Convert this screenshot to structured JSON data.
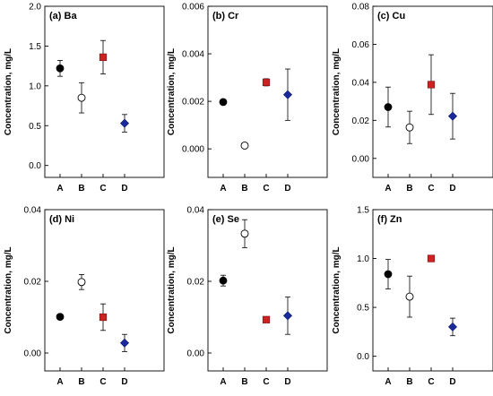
{
  "chart_data": [
    {
      "type": "scatter",
      "title": "(a) Ba",
      "ylabel": "Concentration, mg/L",
      "categories": [
        "A",
        "B",
        "C",
        "D"
      ],
      "ylim": [
        -0.15,
        2.0
      ],
      "yticks": [
        0.0,
        0.5,
        1.0,
        1.5,
        2.0
      ],
      "ytick_labels": [
        "0.0",
        "0.5",
        "1.0",
        "1.5",
        "2.0"
      ],
      "points": [
        {
          "category": "A",
          "value": 1.22,
          "err": 0.1,
          "marker": "circle-filled",
          "color": "#000000"
        },
        {
          "category": "B",
          "value": 0.85,
          "err": 0.19,
          "marker": "circle-open",
          "color": "#000000"
        },
        {
          "category": "C",
          "value": 1.36,
          "err": 0.21,
          "marker": "square",
          "color": "#cc2222"
        },
        {
          "category": "D",
          "value": 0.53,
          "err": 0.11,
          "marker": "diamond",
          "color": "#1a2a9c"
        }
      ]
    },
    {
      "type": "scatter",
      "title": "(b) Cr",
      "ylabel": "Concentration, mg/L",
      "categories": [
        "A",
        "B",
        "C",
        "D"
      ],
      "ylim": [
        -0.0012,
        0.006
      ],
      "yticks": [
        0.0,
        0.002,
        0.004,
        0.006
      ],
      "ytick_labels": [
        "0.000",
        "0.002",
        "0.004",
        "0.006"
      ],
      "points": [
        {
          "category": "A",
          "value": 0.00197,
          "err": 0.0,
          "marker": "circle-filled",
          "color": "#000000"
        },
        {
          "category": "B",
          "value": 0.00014,
          "err": 0.0,
          "marker": "circle-open",
          "color": "#000000"
        },
        {
          "category": "C",
          "value": 0.0028,
          "err": 0.00015,
          "marker": "square",
          "color": "#cc2222"
        },
        {
          "category": "D",
          "value": 0.00228,
          "err": 0.00108,
          "marker": "diamond",
          "color": "#1a2a9c"
        }
      ]
    },
    {
      "type": "scatter",
      "title": "(c) Cu",
      "ylabel": "Concentration, mg/L",
      "categories": [
        "A",
        "B",
        "C",
        "D"
      ],
      "ylim": [
        -0.01,
        0.08
      ],
      "yticks": [
        0.0,
        0.02,
        0.04,
        0.06,
        0.08
      ],
      "ytick_labels": [
        "0.00",
        "0.02",
        "0.04",
        "0.06",
        "0.08"
      ],
      "points": [
        {
          "category": "A",
          "value": 0.027,
          "err": 0.0105,
          "marker": "circle-filled",
          "color": "#000000"
        },
        {
          "category": "B",
          "value": 0.0163,
          "err": 0.0085,
          "marker": "circle-open",
          "color": "#000000"
        },
        {
          "category": "C",
          "value": 0.0388,
          "err": 0.0157,
          "marker": "square",
          "color": "#cc2222"
        },
        {
          "category": "D",
          "value": 0.0222,
          "err": 0.012,
          "marker": "diamond",
          "color": "#1a2a9c"
        }
      ]
    },
    {
      "type": "scatter",
      "title": "(d) Ni",
      "ylabel": "Concentration, mg/L",
      "categories": [
        "A",
        "B",
        "C",
        "D"
      ],
      "ylim": [
        -0.005,
        0.04
      ],
      "yticks": [
        0.0,
        0.02,
        0.04
      ],
      "ytick_labels": [
        "0.00",
        "0.02",
        "0.04"
      ],
      "points": [
        {
          "category": "A",
          "value": 0.0101,
          "err": 0.0007,
          "marker": "circle-filled",
          "color": "#000000"
        },
        {
          "category": "B",
          "value": 0.0198,
          "err": 0.0021,
          "marker": "circle-open",
          "color": "#000000"
        },
        {
          "category": "C",
          "value": 0.01,
          "err": 0.0037,
          "marker": "square",
          "color": "#cc2222"
        },
        {
          "category": "D",
          "value": 0.0028,
          "err": 0.0024,
          "marker": "diamond",
          "color": "#1a2a9c"
        }
      ]
    },
    {
      "type": "scatter",
      "title": "(e) Se",
      "ylabel": "Concentration, mg/L",
      "categories": [
        "A",
        "B",
        "C",
        "D"
      ],
      "ylim": [
        -0.005,
        0.04
      ],
      "yticks": [
        0.0,
        0.02,
        0.04
      ],
      "ytick_labels": [
        "0.00",
        "0.02",
        "0.04"
      ],
      "points": [
        {
          "category": "A",
          "value": 0.0202,
          "err": 0.0015,
          "marker": "circle-filled",
          "color": "#000000"
        },
        {
          "category": "B",
          "value": 0.0333,
          "err": 0.0039,
          "marker": "circle-open",
          "color": "#000000"
        },
        {
          "category": "C",
          "value": 0.0093,
          "err": 0.0,
          "marker": "square",
          "color": "#cc2222"
        },
        {
          "category": "D",
          "value": 0.0104,
          "err": 0.0052,
          "marker": "diamond",
          "color": "#1a2a9c"
        }
      ]
    },
    {
      "type": "scatter",
      "title": "(f) Zn",
      "ylabel": "Concentration, mg/L",
      "categories": [
        "A",
        "B",
        "C",
        "D"
      ],
      "ylim": [
        -0.15,
        1.5
      ],
      "yticks": [
        0.0,
        0.5,
        1.0,
        1.5
      ],
      "ytick_labels": [
        "0.0",
        "0.5",
        "1.0",
        "1.5"
      ],
      "points": [
        {
          "category": "A",
          "value": 0.84,
          "err": 0.15,
          "marker": "circle-filled",
          "color": "#000000"
        },
        {
          "category": "B",
          "value": 0.61,
          "err": 0.21,
          "marker": "circle-open",
          "color": "#000000"
        },
        {
          "category": "C",
          "value": 1.0,
          "err": 0.0,
          "marker": "square",
          "color": "#cc2222"
        },
        {
          "category": "D",
          "value": 0.3,
          "err": 0.09,
          "marker": "diamond",
          "color": "#1a2a9c"
        }
      ]
    }
  ]
}
